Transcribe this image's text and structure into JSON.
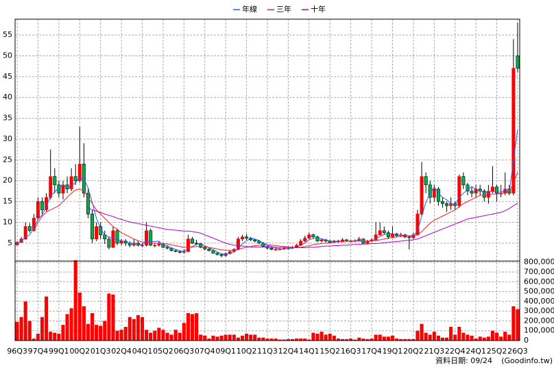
{
  "chart_data": {
    "type": "candlestick",
    "categories": [
      "96Q3",
      null,
      null,
      null,
      null,
      "97Q4",
      null,
      null,
      null,
      null,
      "99Q1",
      null,
      null,
      null,
      null,
      "00Q2",
      null,
      null,
      null,
      null,
      "01Q3",
      null,
      null,
      null,
      null,
      "02Q4",
      null,
      null,
      null,
      null,
      "04Q1",
      null,
      null,
      null,
      null,
      "05Q2",
      null,
      null,
      null,
      null,
      "06Q3",
      null,
      null,
      null,
      null,
      "07Q4",
      null,
      null,
      null,
      null,
      "09Q1",
      null,
      null,
      null,
      null,
      "10Q2",
      null,
      null,
      null,
      null,
      "11Q3",
      null,
      null,
      null,
      null,
      "12Q4",
      null,
      null,
      null,
      null,
      "14Q1",
      null,
      null,
      null,
      null,
      "15Q2",
      null,
      null,
      null,
      null,
      "16Q3",
      null,
      null,
      null,
      null,
      "17Q4",
      null,
      null,
      null,
      null,
      "19Q1",
      null,
      null,
      null,
      null,
      "20Q2",
      null,
      null,
      null,
      null,
      "21Q3",
      null,
      null,
      null,
      null,
      "22Q4",
      null,
      null,
      null,
      null,
      "24Q1",
      null,
      null,
      null,
      null,
      "25Q2",
      null,
      null,
      null,
      null,
      "26Q3"
    ],
    "ohlc": [
      [
        4.6,
        5.5,
        4.4,
        5.2
      ],
      [
        5.2,
        6.5,
        5,
        6
      ],
      [
        6,
        10,
        5.8,
        9
      ],
      [
        9,
        9.8,
        7.5,
        8
      ],
      [
        8,
        12,
        7.8,
        11
      ],
      [
        11,
        16,
        10.5,
        15
      ],
      [
        15,
        16,
        12,
        13
      ],
      [
        13,
        17,
        12.5,
        16
      ],
      [
        16,
        27.5,
        15.5,
        21
      ],
      [
        21,
        23,
        17,
        19
      ],
      [
        19,
        20,
        16,
        17
      ],
      [
        17,
        20,
        15.5,
        19
      ],
      [
        19,
        21,
        17,
        18
      ],
      [
        18,
        23,
        17.5,
        21
      ],
      [
        21,
        24,
        19,
        20
      ],
      [
        20,
        33,
        19.5,
        24
      ],
      [
        24,
        29,
        16,
        17
      ],
      [
        17,
        18,
        11,
        12
      ],
      [
        12,
        13,
        5,
        6
      ],
      [
        6,
        10,
        5.5,
        9
      ],
      [
        9,
        10,
        6,
        7
      ],
      [
        7,
        8,
        4.8,
        6
      ],
      [
        6,
        6.5,
        3.5,
        4
      ],
      [
        4,
        9,
        3.8,
        8
      ],
      [
        8,
        8.5,
        4.5,
        5
      ],
      [
        5,
        6,
        4.5,
        5.5
      ],
      [
        5.5,
        6,
        4.3,
        5
      ],
      [
        5,
        5.5,
        4,
        4.5
      ],
      [
        4.5,
        6,
        4.2,
        5
      ],
      [
        5,
        5.5,
        4.2,
        4.5
      ],
      [
        4.5,
        5,
        4,
        4.5
      ],
      [
        4.5,
        10,
        4.2,
        8
      ],
      [
        8,
        8.5,
        4.3,
        4.5
      ],
      [
        4.5,
        5,
        4,
        4.5
      ],
      [
        4.5,
        5.5,
        4.2,
        4.8
      ],
      [
        4.8,
        5,
        3.8,
        4
      ],
      [
        4,
        4.5,
        3.5,
        3.8
      ],
      [
        3.8,
        4,
        3,
        3.2
      ],
      [
        3.2,
        3.5,
        2.8,
        3
      ],
      [
        3,
        3.2,
        2.5,
        2.8
      ],
      [
        2.8,
        3.5,
        2.5,
        3
      ],
      [
        3,
        7,
        2.8,
        6
      ],
      [
        6,
        6.5,
        4.8,
        5
      ],
      [
        5,
        5.8,
        4.5,
        4.8
      ],
      [
        4.8,
        5,
        3.8,
        4
      ],
      [
        4,
        4.5,
        3.3,
        3.6
      ],
      [
        3.6,
        3.8,
        3,
        3.2
      ],
      [
        3.2,
        3.5,
        2.4,
        2.6
      ],
      [
        2.6,
        2.8,
        2,
        2.3
      ],
      [
        2.3,
        2.5,
        1.6,
        2
      ],
      [
        2,
        2.8,
        1.8,
        2.5
      ],
      [
        2.5,
        3.2,
        2.3,
        3
      ],
      [
        3,
        3.8,
        2.8,
        3.5
      ],
      [
        3.5,
        6.5,
        3.3,
        6
      ],
      [
        6,
        7,
        5.5,
        6.5
      ],
      [
        6.5,
        7.2,
        5.8,
        6.2
      ],
      [
        6.2,
        6.5,
        5.5,
        5.8
      ],
      [
        5.8,
        6,
        5.2,
        5.5
      ],
      [
        5.5,
        5.8,
        4.8,
        5
      ],
      [
        5,
        5.3,
        4,
        4.2
      ],
      [
        4.2,
        4.5,
        3.5,
        3.8
      ],
      [
        3.8,
        4,
        3.3,
        3.5
      ],
      [
        3.5,
        3.8,
        3.2,
        3.5
      ],
      [
        3.5,
        3.9,
        3.3,
        3.6
      ],
      [
        3.6,
        4,
        3.4,
        3.8
      ],
      [
        3.8,
        4.2,
        3.5,
        3.8
      ],
      [
        3.8,
        4.3,
        3.6,
        4
      ],
      [
        4,
        4.8,
        3.8,
        4.5
      ],
      [
        4.5,
        6,
        4.3,
        5.5
      ],
      [
        5.5,
        6.8,
        5.2,
        6.2
      ],
      [
        6.2,
        7.5,
        6,
        7
      ],
      [
        7,
        7.3,
        6.2,
        6.5
      ],
      [
        6.5,
        6.8,
        5.3,
        5.5
      ],
      [
        5.5,
        6.2,
        5.2,
        5.8
      ],
      [
        5.8,
        6,
        5.2,
        5.5
      ],
      [
        5.5,
        5.8,
        5,
        5.2
      ],
      [
        5.2,
        5.8,
        5,
        5.5
      ],
      [
        5.5,
        5.8,
        5.1,
        5.3
      ],
      [
        5.3,
        6.2,
        5.2,
        5.8
      ],
      [
        5.8,
        6,
        5.3,
        5.5
      ],
      [
        5.5,
        5.8,
        5.3,
        5.5
      ],
      [
        5.5,
        5.9,
        5.3,
        5.6
      ],
      [
        5.6,
        6.5,
        5.5,
        6
      ],
      [
        6,
        6.2,
        4.8,
        5
      ],
      [
        5,
        5.8,
        4.8,
        5.5
      ],
      [
        5.5,
        6.2,
        5.3,
        5.8
      ],
      [
        5.8,
        10,
        5.5,
        7
      ],
      [
        7,
        10,
        6.8,
        8
      ],
      [
        8,
        9,
        7,
        7.5
      ],
      [
        7.5,
        8,
        6,
        6.5
      ],
      [
        6.5,
        9,
        6.3,
        7.2
      ],
      [
        7.2,
        7.5,
        6.5,
        6.8
      ],
      [
        6.8,
        7.5,
        6.5,
        7
      ],
      [
        7,
        7.2,
        6.2,
        6.5
      ],
      [
        6.5,
        6.8,
        3.5,
        6.3
      ],
      [
        6.3,
        7.5,
        6,
        7
      ],
      [
        7,
        13,
        6.8,
        12
      ],
      [
        12,
        24.5,
        11.5,
        21
      ],
      [
        21,
        22,
        17,
        19
      ],
      [
        19,
        20,
        14.5,
        16
      ],
      [
        16,
        19,
        15,
        18
      ],
      [
        18,
        18.5,
        14,
        15
      ],
      [
        15,
        16,
        13.5,
        14.5
      ],
      [
        14.5,
        15,
        12.5,
        14
      ],
      [
        14,
        16,
        13,
        14.5
      ],
      [
        14.5,
        15,
        13,
        14
      ],
      [
        14,
        21.5,
        13.5,
        21
      ],
      [
        21,
        22,
        18,
        19
      ],
      [
        19,
        19.5,
        16.5,
        17.5
      ],
      [
        17.5,
        18.5,
        16,
        17
      ],
      [
        17,
        19,
        16,
        18
      ],
      [
        18,
        19,
        16.5,
        17.5
      ],
      [
        17.5,
        18,
        15,
        16
      ],
      [
        16,
        19,
        14.5,
        17.5
      ],
      [
        17.5,
        23.5,
        17,
        18.5
      ],
      [
        18.5,
        19,
        15,
        17
      ],
      [
        17,
        19,
        16,
        17
      ],
      [
        17,
        22,
        16.5,
        18
      ],
      [
        18,
        19,
        16.5,
        17
      ],
      [
        17,
        54,
        16.5,
        47
      ],
      [
        50,
        58,
        46,
        47
      ]
    ],
    "up_color": "#ff0000",
    "down_color": "#00b050",
    "ylim": [
      0.7,
      58.8
    ],
    "yticks": [
      5,
      10,
      15,
      20,
      25,
      30,
      35,
      40,
      45,
      50,
      55
    ],
    "grid": true,
    "legend": "top",
    "series": [
      {
        "name": "年線",
        "color": "#1f5fff",
        "values": [
          5,
          5.5,
          6.5,
          7,
          8.5,
          10.8,
          11.8,
          13.8,
          16.3,
          17.3,
          18.3,
          19,
          18.3,
          18.8,
          19.5,
          20.8,
          20.5,
          18.3,
          14.8,
          11,
          8.5,
          7,
          6.5,
          6.2,
          5.8,
          5.6,
          5.3,
          5,
          5,
          4.8,
          4.6,
          5.5,
          5.4,
          5.4,
          5.5,
          4.5,
          4.3,
          3.9,
          3.5,
          3.2,
          3,
          3.8,
          4.2,
          4.7,
          5,
          4.4,
          3.9,
          3.4,
          2.9,
          2.5,
          2.4,
          2.5,
          2.8,
          3.8,
          4.8,
          5.6,
          6.1,
          6,
          5.6,
          5,
          4.6,
          4.2,
          3.8,
          3.6,
          3.6,
          3.7,
          3.8,
          4,
          4.5,
          5,
          5.8,
          6.1,
          6.3,
          6,
          5.8,
          5.5,
          5.5,
          5.4,
          5.5,
          5.5,
          5.5,
          5.6,
          5.7,
          5.5,
          5.5,
          5.5,
          6.2,
          6.6,
          7.1,
          7.2,
          7.3,
          7,
          6.9,
          6.9,
          6.7,
          6.7,
          8,
          11.5,
          14.8,
          17,
          18.5,
          17,
          16,
          15.4,
          14.5,
          14.3,
          16,
          17,
          17.8,
          18.6,
          17.9,
          17.6,
          17.2,
          17.3,
          17.4,
          17.3,
          17.3,
          17.6,
          17.3,
          24.8,
          32.3
        ]
      },
      {
        "name": "三年",
        "color": "#ff1a1a",
        "values": [
          null,
          null,
          null,
          null,
          8,
          10,
          11.5,
          12.5,
          13,
          13.5,
          14,
          15,
          16,
          17,
          17.8,
          18,
          17.5,
          16,
          14.5,
          13,
          12,
          11,
          10,
          9,
          8.3,
          7.5,
          7,
          6.5,
          6,
          5.6,
          5.3,
          5.2,
          5,
          5,
          5,
          4.9,
          4.8,
          4.6,
          4.4,
          4.2,
          4,
          4,
          4.1,
          4.2,
          4.2,
          4.1,
          4,
          3.8,
          3.6,
          3.4,
          3.3,
          3.3,
          3.3,
          3.5,
          3.8,
          4,
          4.2,
          4.4,
          4.5,
          4.6,
          4.6,
          4.5,
          4.4,
          4.3,
          4.2,
          4.1,
          4,
          3.9,
          4,
          4.2,
          4.4,
          4.6,
          4.8,
          4.9,
          5,
          5.1,
          5.2,
          5.3,
          5.4,
          5.5,
          5.5,
          5.5,
          5.5,
          5.5,
          5.5,
          5.5,
          5.6,
          5.8,
          6,
          6.2,
          6.3,
          6.5,
          6.6,
          6.7,
          6.8,
          6.8,
          7,
          7.8,
          8.8,
          9.8,
          10.5,
          11,
          11.5,
          12,
          12.5,
          13,
          13.8,
          14.5,
          15,
          15.5,
          16,
          16.5,
          16.5,
          16.5,
          16.8,
          16.8,
          17,
          17.2,
          17.3,
          19.5,
          22
        ]
      },
      {
        "name": "十年",
        "color": "#b000c8",
        "values": [
          null,
          null,
          null,
          null,
          null,
          null,
          null,
          null,
          null,
          null,
          null,
          null,
          null,
          null,
          null,
          null,
          null,
          13.5,
          13,
          12.7,
          12.4,
          12,
          11.7,
          11.4,
          11,
          10.7,
          10.4,
          10.1,
          9.9,
          9.7,
          9.5,
          9.3,
          9.1,
          8.9,
          8.7,
          8.5,
          8.3,
          8.2,
          8.1,
          8,
          7.9,
          7.9,
          7.8,
          7.6,
          7.4,
          7,
          6.6,
          6.2,
          5.8,
          5.4,
          5,
          4.7,
          4.5,
          4.4,
          4.3,
          4.2,
          4.1,
          4.1,
          4.1,
          4.1,
          4.1,
          4,
          4,
          4,
          4,
          4,
          3.9,
          3.9,
          3.9,
          3.9,
          4,
          4,
          4.1,
          4.2,
          4.3,
          4.3,
          4.4,
          4.4,
          4.5,
          4.5,
          4.6,
          4.7,
          4.7,
          4.8,
          4.8,
          4.9,
          4.9,
          5,
          5.1,
          5.2,
          5.3,
          5.4,
          5.5,
          5.6,
          5.7,
          5.8,
          6,
          6.4,
          6.8,
          7.2,
          7.6,
          8,
          8.4,
          8.8,
          9.2,
          9.6,
          10,
          10.4,
          10.8,
          11,
          11.2,
          11.4,
          11.6,
          11.8,
          12,
          12.2,
          12.4,
          12.8,
          13.3,
          14,
          14.6
        ]
      }
    ],
    "volume": {
      "color": "#ff0000",
      "ylim": [
        0,
        812000
      ],
      "yticks": [
        0,
        {
          "value": 100000,
          "label": "100,000"
        },
        {
          "value": 200000,
          "label": "200,000"
        },
        {
          "value": 300000,
          "label": "300,000"
        },
        {
          "value": 400000,
          "label": "400,000"
        },
        {
          "value": 500000,
          "label": "500,000"
        },
        {
          "value": 600000,
          "label": "600,000"
        },
        {
          "value": 700000,
          "label": "700,000"
        },
        {
          "value": 800000,
          "label": "800,000"
        }
      ],
      "values": [
        190000,
        240000,
        400000,
        200000,
        20000,
        70000,
        240000,
        450000,
        90000,
        80000,
        70000,
        160000,
        270000,
        330000,
        820000,
        490000,
        350000,
        170000,
        280000,
        160000,
        150000,
        200000,
        480000,
        470000,
        100000,
        110000,
        140000,
        240000,
        220000,
        260000,
        240000,
        110000,
        80000,
        100000,
        130000,
        110000,
        80000,
        60000,
        110000,
        80000,
        180000,
        280000,
        270000,
        280000,
        60000,
        50000,
        20000,
        50000,
        40000,
        50000,
        60000,
        60000,
        60000,
        30000,
        50000,
        70000,
        60000,
        60000,
        30000,
        30000,
        20000,
        20000,
        20000,
        10000,
        10000,
        15000,
        15000,
        20000,
        20000,
        20000,
        10000,
        80000,
        70000,
        90000,
        60000,
        70000,
        50000,
        20000,
        15000,
        15000,
        20000,
        10000,
        30000,
        20000,
        15000,
        20000,
        60000,
        60000,
        40000,
        40000,
        50000,
        20000,
        15000,
        15000,
        15000,
        15000,
        100000,
        170000,
        80000,
        60000,
        90000,
        50000,
        30000,
        30000,
        140000,
        60000,
        140000,
        80000,
        60000,
        50000,
        20000,
        40000,
        30000,
        40000,
        100000,
        80000,
        40000,
        90000,
        60000,
        350000,
        320000
      ]
    },
    "note": "資料日期: 09/24",
    "source": "(Goodinfo.tw)"
  }
}
